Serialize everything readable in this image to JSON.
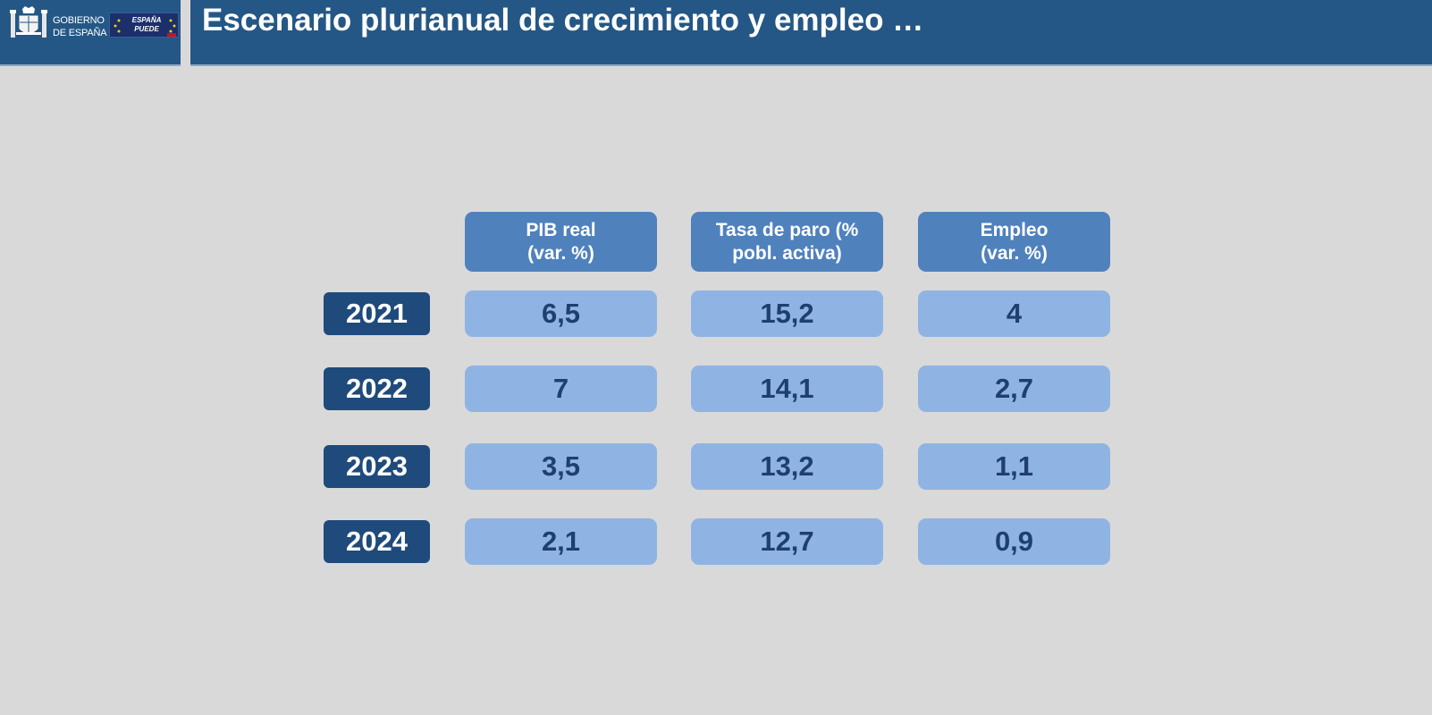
{
  "header": {
    "logo_line1": "GOBIERNO",
    "logo_line2": "DE ESPAÑA",
    "badge_line1": "ESPAÑA",
    "badge_line2": "PUEDE",
    "title": "Escenario plurianual de crecimiento y empleo …",
    "bar_color": "#245785"
  },
  "table": {
    "columns": [
      {
        "line1": "PIB real",
        "line2": "(var. %)"
      },
      {
        "line1": "Tasa de paro (%",
        "line2": "pobl. activa)"
      },
      {
        "line1": "Empleo",
        "line2": "(var. %)"
      }
    ],
    "rows": [
      {
        "year": "2021",
        "values": [
          "6,5",
          "15,2",
          "4"
        ]
      },
      {
        "year": "2022",
        "values": [
          "7",
          "14,1",
          "2,7"
        ]
      },
      {
        "year": "2023",
        "values": [
          "3,5",
          "13,2",
          "1,1"
        ]
      },
      {
        "year": "2024",
        "values": [
          "2,1",
          "12,7",
          "0,9"
        ]
      }
    ],
    "colors": {
      "header": "#4f81bd",
      "year": "#1f4a7c",
      "value": "#8fb4e3",
      "value_text": "#1f3f6e"
    }
  }
}
